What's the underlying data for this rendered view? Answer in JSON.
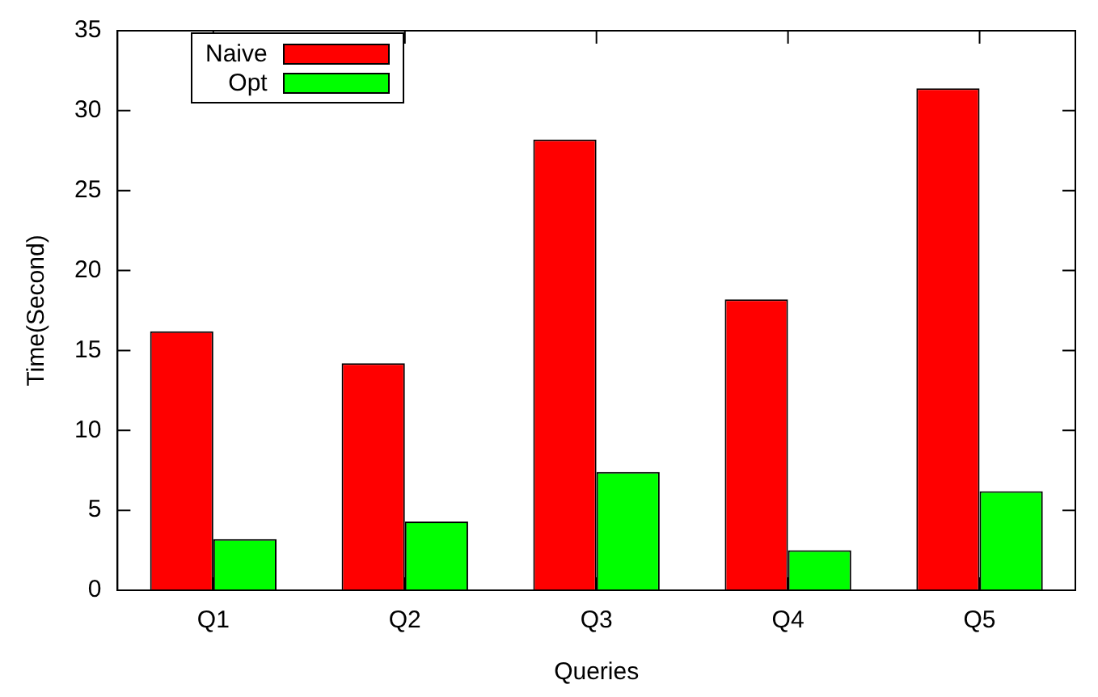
{
  "chart_data": {
    "type": "bar",
    "xlabel": "Queries",
    "ylabel": "Time(Second)",
    "categories": [
      "Q1",
      "Q2",
      "Q3",
      "Q4",
      "Q5"
    ],
    "series": [
      {
        "name": "Naive",
        "color": "#ff0000",
        "values": [
          16.2,
          14.2,
          28.2,
          18.2,
          31.4
        ]
      },
      {
        "name": "Opt",
        "color": "#00ff00",
        "values": [
          3.2,
          4.3,
          7.4,
          2.5,
          6.2
        ]
      }
    ],
    "ylim": [
      0,
      35
    ],
    "yticks": [
      0,
      5,
      10,
      15,
      20,
      25,
      30,
      35
    ],
    "grid": false,
    "legend": "top left"
  }
}
